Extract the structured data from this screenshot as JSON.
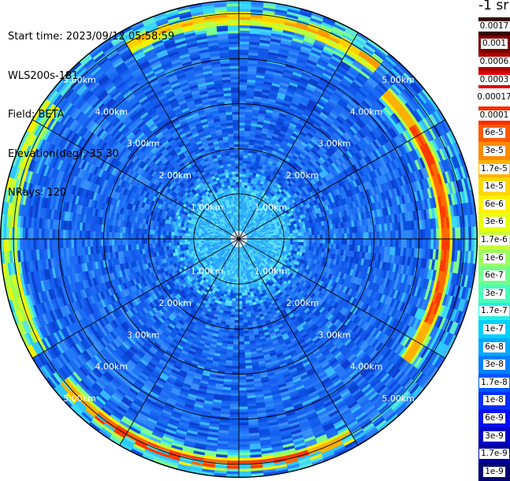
{
  "info": {
    "start_time": "Start time: 2023/09/12 05:58:59",
    "instrument": "WLS200s-181",
    "field": "Field: BETA",
    "elevation": "Elevation(deg): 35.30",
    "nrays": "NRays: 120"
  },
  "colorbar": {
    "unit": "-1 sr",
    "labels": [
      "0.0017",
      "0.001",
      "0.0006",
      "0.0003",
      "0.00017",
      "0.0001",
      "6e-5",
      "3e-5",
      "1.7e-5",
      "1e-5",
      "6e-6",
      "3e-6",
      "1.7e-6",
      "1e-6",
      "6e-7",
      "3e-7",
      "1.7e-7",
      "1e-7",
      "6e-8",
      "3e-8",
      "1.7e-8",
      "1e-8",
      "6e-9",
      "3e-9",
      "1.7e-9",
      "1e-9"
    ],
    "colors": [
      "#3a0000",
      "#7a0000",
      "#b00000",
      "#e00000",
      "#ffffff",
      "#ff2a00",
      "#ff5a00",
      "#ff8a00",
      "#ffb300",
      "#ffd800",
      "#fff000",
      "#e8ff10",
      "#c8ff38",
      "#9cff60",
      "#70ff8e",
      "#48ffb8",
      "#20f0e0",
      "#00d0ff",
      "#00a8ff",
      "#0080ff",
      "#0058ff",
      "#0030ff",
      "#0010f0",
      "#0000c8",
      "#00009a",
      "#000070"
    ]
  },
  "chart_data": {
    "type": "heatmap",
    "projection": "polar (PPI)",
    "field": "BETA",
    "range_rings_km": [
      1.0,
      2.0,
      3.0,
      4.0,
      5.0
    ],
    "ring_labels": [
      "1.00km",
      "2.00km",
      "3.00km",
      "4.00km",
      "5.00km"
    ],
    "spokes_deg": [
      0,
      30,
      60,
      90,
      120,
      150,
      180,
      210,
      240,
      270,
      300,
      330
    ],
    "nrays": 120,
    "max_range_km": 5.3,
    "features": [
      {
        "pattern": "near-range",
        "range_km": [
          0,
          1.2
        ],
        "colour": "cyan"
      },
      {
        "pattern": "background",
        "range_km": [
          1.2,
          5.3
        ],
        "colour": "blue"
      },
      {
        "pattern": "strong echo arc",
        "range_km": 4.6,
        "azimuth_deg": [
          45,
          125
        ],
        "colour": "orange-red"
      },
      {
        "pattern": "strong echo arc",
        "range_km": 5.0,
        "azimuth_deg": [
          150,
          230
        ],
        "colour": "orange-red"
      },
      {
        "pattern": "strong echo arc",
        "range_km": 5.1,
        "azimuth_deg": [
          240,
          305
        ],
        "colour": "yellow-green"
      },
      {
        "pattern": "strong echo arc",
        "range_km": 4.9,
        "azimuth_deg": [
          330,
          40
        ],
        "colour": "yellow-orange"
      }
    ]
  }
}
